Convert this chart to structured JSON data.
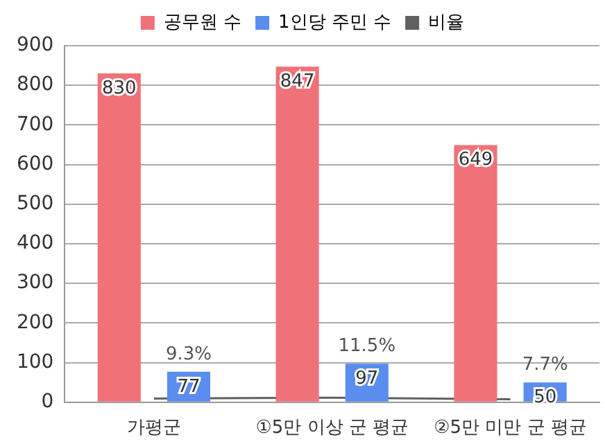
{
  "chart_data": {
    "type": "bar",
    "categories": [
      "가평군",
      "①5만 이상 군 평균",
      "②5만 미만 군 평균"
    ],
    "series": [
      {
        "name": "공무원 수",
        "color": "#f07178",
        "values": [
          830,
          847,
          649
        ],
        "value_labels": [
          "830",
          "847",
          "649"
        ]
      },
      {
        "name": "1인당 주민 수",
        "color": "#5b8def",
        "values": [
          77,
          97,
          50
        ],
        "value_labels": [
          "77",
          "97",
          "50"
        ]
      },
      {
        "name": "비율",
        "color": "#606060",
        "type": "line",
        "marker": "none",
        "values": [
          9.3,
          11.5,
          7.7
        ],
        "value_labels": [
          "9.3%",
          "11.5%",
          "7.7%"
        ]
      }
    ],
    "ylim": [
      0,
      900
    ],
    "yticks": [
      0,
      100,
      200,
      300,
      400,
      500,
      600,
      700,
      800,
      900
    ],
    "grid": "y",
    "legend": "top"
  }
}
